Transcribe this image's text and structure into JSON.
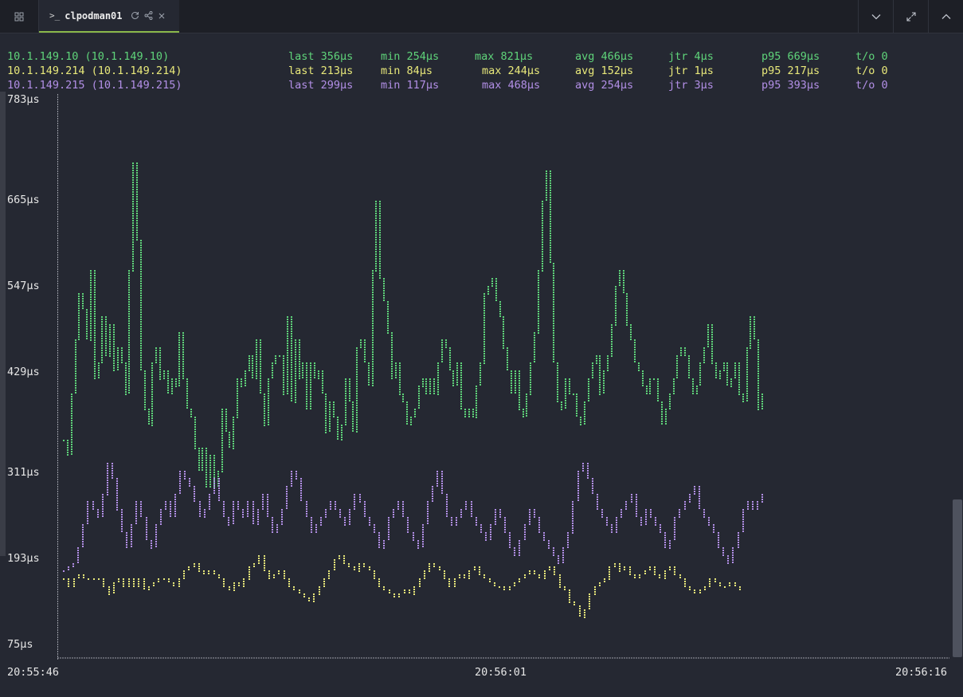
{
  "tab": {
    "prompt_glyph": ">_",
    "title": "clpodman01",
    "icons": [
      "refresh-icon",
      "share-icon",
      "close-icon"
    ]
  },
  "window_controls": [
    "chevron-down-icon",
    "expand-icon",
    "chevron-up-icon"
  ],
  "stats": [
    {
      "host": "10.1.149.10 (10.1.149.10)",
      "last": "last 356µs",
      "min": "min 254µs",
      "max": "max 821µs",
      "avg": "avg 466µs",
      "jtr": "jtr 4µs",
      "p95": "p95 669µs",
      "timeout": "t/o 0",
      "color": "#5fd47a"
    },
    {
      "host": "10.1.149.214 (10.1.149.214)",
      "last": "last 213µs",
      "min": "min 84µs",
      "max": "max 244µs",
      "avg": "avg 152µs",
      "jtr": "jtr 1µs",
      "p95": "p95 217µs",
      "timeout": "t/o 0",
      "color": "#e8e87a"
    },
    {
      "host": "10.1.149.215 (10.1.149.215)",
      "last": "last 299µs",
      "min": "min 117µs",
      "max": "max 468µs",
      "avg": "avg 254µs",
      "jtr": "jtr 3µs",
      "p95": "p95 393µs",
      "timeout": "t/o 0",
      "color": "#b28fe6"
    }
  ],
  "chart_data": {
    "type": "line",
    "y_ticks": [
      "783µs",
      "665µs",
      "547µs",
      "429µs",
      "311µs",
      "193µs",
      "75µs"
    ],
    "y_unit": "µs",
    "ylim": [
      75,
      783
    ],
    "x_ticks": [
      "20:55:46",
      "20:56:01",
      "20:56:16"
    ],
    "series": [
      {
        "name": "10.1.149.10",
        "color": "#5fd47a",
        "values": [
          340,
          320,
          400,
          470,
          530,
          510,
          470,
          560,
          420,
          440,
          500,
          450,
          490,
          430,
          460,
          440,
          400,
          560,
          700,
          600,
          430,
          380,
          360,
          440,
          460,
          420,
          430,
          400,
          420,
          410,
          480,
          420,
          380,
          370,
          330,
          300,
          330,
          280,
          320,
          280,
          300,
          380,
          350,
          330,
          370,
          420,
          410,
          430,
          450,
          420,
          470,
          400,
          360,
          420,
          440,
          450,
          450,
          400,
          500,
          390,
          470,
          420,
          440,
          380,
          440,
          420,
          430,
          400,
          350,
          390,
          370,
          340,
          360,
          420,
          390,
          350,
          460,
          470,
          440,
          410,
          560,
          650,
          550,
          520,
          480,
          420,
          440,
          400,
          390,
          360,
          370,
          380,
          410,
          420,
          400,
          420,
          400,
          440,
          470,
          460,
          430,
          410,
          440,
          380,
          370,
          380,
          370,
          410,
          440,
          530,
          540,
          550,
          520,
          500,
          460,
          430,
          400,
          430,
          380,
          370,
          400,
          440,
          480,
          560,
          650,
          690,
          570,
          440,
          390,
          380,
          420,
          400,
          400,
          370,
          360,
          390,
          420,
          440,
          450,
          400,
          430,
          450,
          490,
          540,
          560,
          530,
          490,
          470,
          440,
          430,
          410,
          400,
          420,
          420,
          390,
          360,
          380,
          400,
          420,
          450,
          460,
          450,
          420,
          400,
          410,
          440,
          460,
          490,
          440,
          420,
          430,
          440,
          410,
          420,
          440,
          400,
          390,
          460,
          500,
          470,
          380,
          400
        ]
      },
      {
        "name": "10.1.149.214",
        "color": "#e8e87a",
        "values": [
          160,
          150,
          160,
          165,
          160,
          160,
          160,
          160,
          150,
          140,
          155,
          160,
          150,
          160,
          150,
          160,
          145,
          150,
          155,
          160,
          160,
          155,
          150,
          160,
          170,
          175,
          180,
          170,
          165,
          170,
          165,
          160,
          150,
          145,
          155,
          150,
          160,
          175,
          180,
          190,
          170,
          160,
          165,
          170,
          160,
          150,
          145,
          140,
          135,
          130,
          140,
          150,
          160,
          170,
          185,
          190,
          180,
          175,
          170,
          180,
          175,
          170,
          160,
          150,
          145,
          140,
          135,
          140,
          145,
          140,
          150,
          160,
          170,
          180,
          175,
          170,
          160,
          150,
          160,
          165,
          160,
          170,
          175,
          165,
          160,
          155,
          150,
          150,
          145,
          150,
          155,
          160,
          165,
          170,
          165,
          160,
          170,
          175,
          165,
          150,
          145,
          130,
          125,
          110,
          120,
          140,
          150,
          155,
          160,
          175,
          180,
          170,
          175,
          165,
          160,
          165,
          170,
          175,
          165,
          160,
          170,
          175,
          165,
          160,
          150,
          145,
          140,
          145,
          150,
          160,
          155,
          150,
          150,
          155,
          150,
          145
        ]
      },
      {
        "name": "10.1.149.215",
        "color": "#b28fe6",
        "values": [
          170,
          175,
          180,
          200,
          230,
          260,
          250,
          240,
          270,
          310,
          290,
          250,
          220,
          200,
          230,
          260,
          240,
          210,
          200,
          230,
          250,
          260,
          240,
          270,
          300,
          290,
          280,
          260,
          240,
          250,
          270,
          290,
          260,
          240,
          230,
          260,
          250,
          240,
          260,
          230,
          250,
          270,
          240,
          220,
          230,
          250,
          280,
          300,
          290,
          260,
          240,
          220,
          230,
          240,
          250,
          260,
          250,
          240,
          230,
          250,
          270,
          260,
          240,
          230,
          220,
          200,
          210,
          240,
          250,
          260,
          240,
          220,
          210,
          200,
          230,
          260,
          280,
          300,
          270,
          240,
          230,
          240,
          250,
          260,
          240,
          230,
          220,
          210,
          230,
          250,
          240,
          220,
          200,
          190,
          210,
          230,
          250,
          240,
          220,
          210,
          200,
          190,
          180,
          200,
          220,
          260,
          300,
          310,
          290,
          270,
          250,
          240,
          230,
          220,
          240,
          250,
          260,
          270,
          240,
          230,
          250,
          240,
          230,
          220,
          200,
          210,
          240,
          250,
          260,
          270,
          280,
          250,
          240,
          230,
          220,
          200,
          190,
          180,
          200,
          220,
          250,
          260,
          250,
          260,
          270
        ]
      }
    ]
  }
}
